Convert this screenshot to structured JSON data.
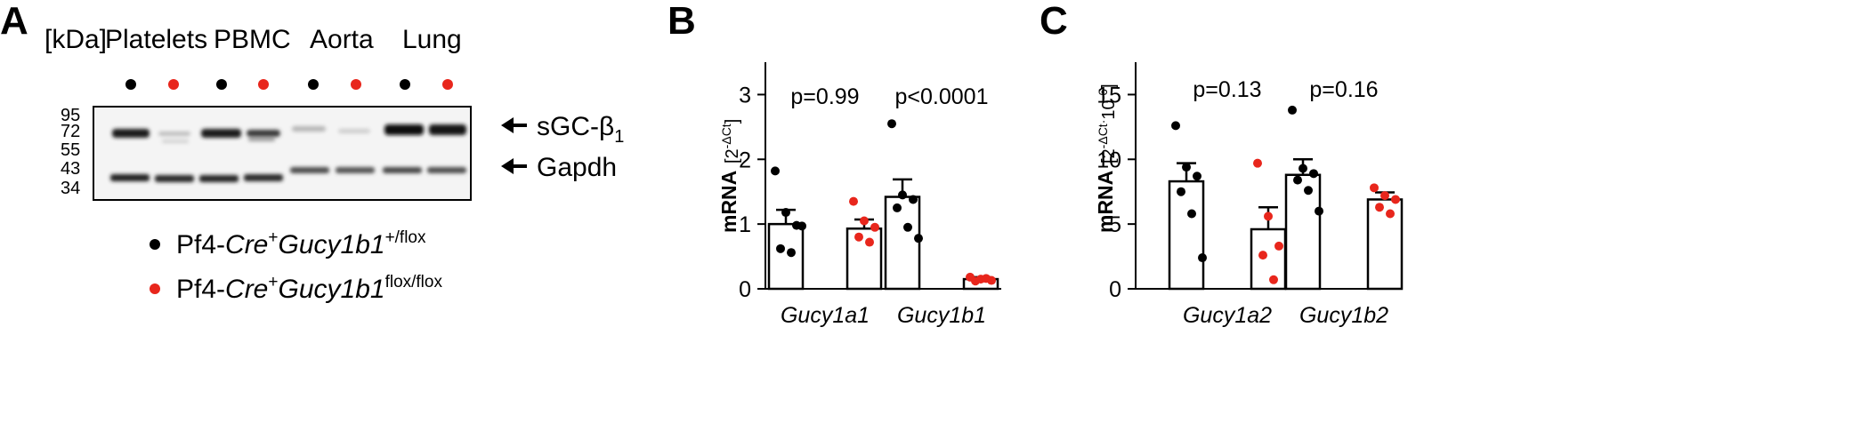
{
  "panels": {
    "a": "A",
    "b": "B",
    "c": "C"
  },
  "blot": {
    "kda_label": "[kDa]",
    "groups": [
      "Platelets",
      "PBMC",
      "Aorta",
      "Lung"
    ],
    "markers": [
      "95",
      "72",
      "55",
      "43",
      "34"
    ],
    "band_labels": {
      "sgc": "sGC-β",
      "sgc_sub": "1",
      "gapdh": "Gapdh"
    }
  },
  "legend": {
    "items": [
      {
        "prefix": "Pf4-",
        "cre": "Cre",
        "plus": "+",
        "gene": "Gucy1b1",
        "sup": "+/flox",
        "color": "#000000"
      },
      {
        "prefix": "Pf4-",
        "cre": "Cre",
        "plus": "+",
        "gene": "Gucy1b1",
        "sup": "flox/flox",
        "color": "#e8261c"
      }
    ]
  },
  "colors": {
    "control": "#000000",
    "knockout": "#e8261c"
  },
  "chart_data": [
    {
      "type": "bar",
      "panel": "B",
      "ylabel": "mRNA",
      "ylabel_unit": "[2-ΔCt]",
      "ylim": [
        0,
        3.5
      ],
      "yticks": [
        "0",
        "1",
        "2",
        "3"
      ],
      "categories": [
        "Gucy1a1",
        "Gucy1b1"
      ],
      "pvalues": [
        "p=0.99",
        "p<0.0001"
      ],
      "series": [
        {
          "values": [
            1.0,
            1.42
          ],
          "sem": [
            0.22,
            0.27
          ],
          "points": [
            [
              1.82,
              1.18,
              0.98,
              0.62,
              0.56,
              0.97
            ],
            [
              2.55,
              1.45,
              1.38,
              1.25,
              0.95,
              0.78
            ]
          ]
        },
        {
          "values": [
            0.93,
            0.15
          ],
          "sem": [
            0.14,
            0.03
          ],
          "points": [
            [
              1.35,
              1.05,
              0.95,
              0.8,
              0.72
            ],
            [
              0.18,
              0.15,
              0.13,
              0.12,
              0.16
            ]
          ]
        }
      ]
    },
    {
      "type": "bar",
      "panel": "C",
      "ylabel": "mRNA",
      "ylabel_unit": "[2-ΔCt·10-6]",
      "ylim": [
        0,
        17.5
      ],
      "yticks": [
        "0",
        "5",
        "10",
        "15"
      ],
      "categories": [
        "Gucy1a2",
        "Gucy1b2"
      ],
      "pvalues": [
        "p=0.13",
        "p=0.16"
      ],
      "series": [
        {
          "values": [
            8.3,
            8.8
          ],
          "sem": [
            1.4,
            1.2
          ],
          "points": [
            [
              12.6,
              9.4,
              8.7,
              7.5,
              5.8,
              2.4
            ],
            [
              13.8,
              9.3,
              8.9,
              8.4,
              7.6,
              6.0
            ]
          ]
        },
        {
          "values": [
            4.6,
            6.9
          ],
          "sem": [
            1.7,
            0.55
          ],
          "points": [
            [
              9.7,
              5.6,
              3.3,
              2.6,
              0.7
            ],
            [
              7.8,
              7.2,
              6.9,
              6.3,
              5.8
            ]
          ]
        }
      ]
    }
  ]
}
